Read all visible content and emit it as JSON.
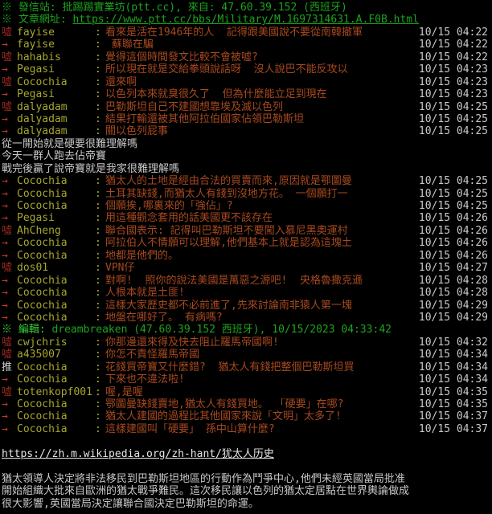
{
  "colors": {
    "bg": "#000000",
    "green": "#1ea31e",
    "green_bright": "#35cf35",
    "boo": "#97291f",
    "arrow": "#cb3a22",
    "push": "#cfcfcf",
    "user": "#a6a62e",
    "content": "#a8491f",
    "time": "#c9c9c9",
    "plain": "#c8c8c8",
    "link": "#e6e6e6"
  },
  "lines": [
    {
      "type": "source",
      "text": "※ 發信站: 批踢踢實業坊(ptt.cc), 來自: 47.60.39.152 (西班牙)"
    },
    {
      "type": "url",
      "label": "※ 文章網址: ",
      "url": "https://www.ptt.cc/bbs/Military/M.1697314631.A.F0B.html"
    },
    {
      "type": "push",
      "tagtype": "boo",
      "tag": "噓",
      "user": "fayise",
      "content": "看來是活在1946年的人  記得跟美國說不要從南韓撤軍",
      "time": "10/15 04:22"
    },
    {
      "type": "push",
      "tagtype": "arrow",
      "tag": "→",
      "user": "fayise",
      "content": " 蘇聯在騙",
      "time": "10/15 04:22"
    },
    {
      "type": "push",
      "tagtype": "boo",
      "tag": "噓",
      "user": "hahabis",
      "content": "覺得這個時間發文比較不會被噓?",
      "time": "10/15 04:22"
    },
    {
      "type": "push",
      "tagtype": "arrow",
      "tag": "→",
      "user": "Pegasi",
      "content": "所以現在就是交給拳頭說話呀  沒人說巴不能反攻以",
      "time": "10/15 04:23"
    },
    {
      "type": "push",
      "tagtype": "boo",
      "tag": "噓",
      "user": "Cocochia",
      "content": "還來啊",
      "time": "10/15 04:23"
    },
    {
      "type": "push",
      "tagtype": "arrow",
      "tag": "→",
      "user": "Pegasi",
      "content": "以色列本來就臭很久了  但為什麼能立足到現在",
      "time": "10/15 04:23"
    },
    {
      "type": "push",
      "tagtype": "boo",
      "tag": "噓",
      "user": "dalyadam",
      "content": "巴勒斯坦自己不建國想靠埃及滅以色列",
      "time": "10/15 04:25"
    },
    {
      "type": "push",
      "tagtype": "arrow",
      "tag": "→",
      "user": "dalyadam",
      "content": "結果打輸還被其他阿拉伯國家佔領巴勒斯坦",
      "time": "10/15 04:25"
    },
    {
      "type": "push",
      "tagtype": "arrow",
      "tag": "→",
      "user": "dalyadam",
      "content": "關以色列屁事",
      "time": "10/15 04:25"
    },
    {
      "type": "plain",
      "text": "從一開始就是硬要很難理解嗎"
    },
    {
      "type": "plain",
      "text": "今天一群人跑去佔帝寶"
    },
    {
      "type": "plain",
      "text": "戰完後贏了說帝寶就是我家很難理解嗎"
    },
    {
      "type": "push",
      "tagtype": "arrow",
      "tag": "→",
      "user": "Cocochia",
      "content": "猶太人的土地是經由合法的買賣而來,原因就是鄂圖曼",
      "time": "10/15 04:25"
    },
    {
      "type": "push",
      "tagtype": "arrow",
      "tag": "→",
      "user": "Cocochia",
      "content": "土耳其缺錢,而猶太人有錢到沒地方花。 一個願打一",
      "time": "10/15 04:25"
    },
    {
      "type": "push",
      "tagtype": "arrow",
      "tag": "→",
      "user": "Cocochia",
      "content": "個願挨,哪裏來的「強佔」?",
      "time": "10/15 04:25"
    },
    {
      "type": "push",
      "tagtype": "arrow",
      "tag": "→",
      "user": "Pegasi",
      "content": "用這種觀念套用的話美國更不該存在",
      "time": "10/15 04:26"
    },
    {
      "type": "push",
      "tagtype": "boo",
      "tag": "噓",
      "user": "AhCheng",
      "content": "聯合國表示: 記得叫巴勒斯坦不要闖入慕尼黑奧運村",
      "time": "10/15 04:26"
    },
    {
      "type": "push",
      "tagtype": "arrow",
      "tag": "→",
      "user": "Cocochia",
      "content": "阿拉伯人不情願可以理解,他們基本上就是認為這塊土",
      "time": "10/15 04:26"
    },
    {
      "type": "push",
      "tagtype": "arrow",
      "tag": "→",
      "user": "Cocochia",
      "content": "地都是他們的。",
      "time": "10/15 04:26"
    },
    {
      "type": "push",
      "tagtype": "boo",
      "tag": "噓",
      "user": "dos01",
      "content": "VPN仔",
      "time": "10/15 04:27"
    },
    {
      "type": "push",
      "tagtype": "arrow",
      "tag": "→",
      "user": "Cocochia",
      "content": "對啊!  照你的說法美國是萬惡之源吧!  央格魯撒克遜",
      "time": "10/15 04:28"
    },
    {
      "type": "push",
      "tagtype": "arrow",
      "tag": "→",
      "user": "Cocochia",
      "content": "人根本就是土匪!",
      "time": "10/15 04:28"
    },
    {
      "type": "push",
      "tagtype": "arrow",
      "tag": "→",
      "user": "Cocochia",
      "content": "這樣大家歷史都不必前進了,先來討論南非猿人第一塊",
      "time": "10/15 04:29"
    },
    {
      "type": "push",
      "tagtype": "arrow",
      "tag": "→",
      "user": "Cocochia",
      "content": "地盤在哪好了。 有病嗎?",
      "time": "10/15 04:29"
    },
    {
      "type": "edit",
      "label": "※ 編輯: ",
      "text": "dreambreaken (47.60.39.152 西班牙), 10/15/2023 04:33:42"
    },
    {
      "type": "push",
      "tagtype": "boo",
      "tag": "噓",
      "user": "cwjchris",
      "content": "你那邊還來得及快去阻止羅馬帝國啊!",
      "time": "10/15 04:32"
    },
    {
      "type": "push",
      "tagtype": "boo",
      "tag": "噓",
      "user": "a435007",
      "content": "你怎不責怪羅馬帝國",
      "time": "10/15 04:34"
    },
    {
      "type": "push",
      "tagtype": "push",
      "tag": "推",
      "user": "Cocochia",
      "content": "花錢買帝寶又什麼錯?  猶太人有錢把整個巴勒斯坦買",
      "time": "10/15 04:34"
    },
    {
      "type": "push",
      "tagtype": "arrow",
      "tag": "→",
      "user": "Cocochia",
      "content": "下來也不違法啦!",
      "time": "10/15 04:34"
    },
    {
      "type": "push",
      "tagtype": "boo",
      "tag": "噓",
      "user": "totenkopf001",
      "content": "喔,是喔",
      "time": "10/15 04:35"
    },
    {
      "type": "push",
      "tagtype": "arrow",
      "tag": "→",
      "user": "Cocochia",
      "content": "鄂圖曼缺錢賣地,猶太人有錢買地。 「硬要」在哪?",
      "time": "10/15 04:35"
    },
    {
      "type": "push",
      "tagtype": "arrow",
      "tag": "→",
      "user": "Cocochia",
      "content": "猶太人建國的過程比其他國家來說「文明」太多了!",
      "time": "10/15 04:37"
    },
    {
      "type": "push",
      "tagtype": "arrow",
      "tag": "→",
      "user": "Cocochia",
      "content": "這樣建國叫「硬要」 孫中山算什麼?",
      "time": "10/15 04:37"
    },
    {
      "type": "blank"
    },
    {
      "type": "link",
      "url": "https://zh.m.wikipedia.org/zh-hant/犹太人历史"
    },
    {
      "type": "blank"
    },
    {
      "type": "plain",
      "text": "猶太領導人決定將非法移民到巴勒斯坦地區的行動作為鬥爭中心,他們未經英國當局批准"
    },
    {
      "type": "plain",
      "text": "開始組織大批來自歐洲的猶太戰爭難民。這次移民讓以色列的猶太定居點在世界輿論做成"
    },
    {
      "type": "plain",
      "text": "很大影響,英國當局決定讓聯合國決定巴勒斯坦的命運。"
    }
  ]
}
